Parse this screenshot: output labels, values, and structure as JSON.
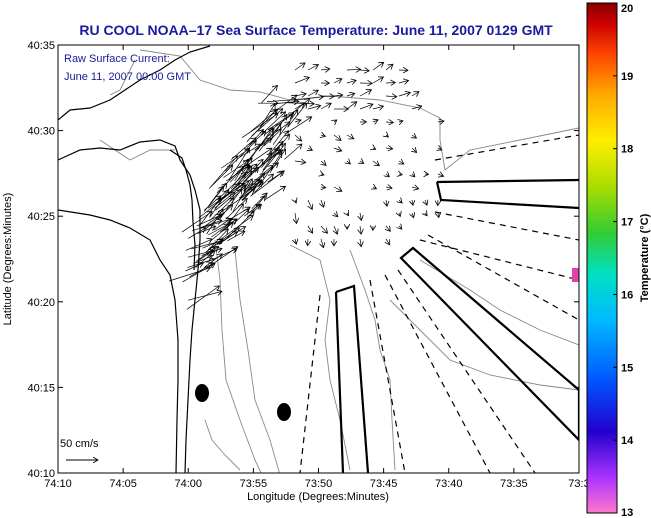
{
  "title": "RU COOL   NOAA–17  Sea Surface Temperature:  June 11, 2007 0129 GMT",
  "annotation": {
    "line1": "Raw Surface Current:",
    "line2": "June 11, 2007 00:00 GMT"
  },
  "scale_label": "50 cm/s",
  "x_axis": {
    "label": "Longitude (Degrees:Minutes)",
    "ticks": [
      "74:10",
      "74:05",
      "74:00",
      "73:55",
      "73:50",
      "73:45",
      "73:40",
      "73:35",
      "73:3"
    ]
  },
  "y_axis": {
    "label": "Latitude (Degrees:Minutes)",
    "ticks": [
      "40:35",
      "40:30",
      "40:25",
      "40:20",
      "40:15",
      "40:10"
    ]
  },
  "colorbar": {
    "label": "Temperature (°C)",
    "ticks": [
      "20",
      "19",
      "18",
      "17",
      "16",
      "15",
      "14",
      "13"
    ],
    "min": 13,
    "max": 20,
    "colors": [
      "#ff66cc",
      "#9933ff",
      "#0000cc",
      "#0066ff",
      "#00ccff",
      "#00e6b0",
      "#33cc33",
      "#99dd00",
      "#ffee00",
      "#ffaa00",
      "#ff5500",
      "#dd0000",
      "#990000"
    ]
  },
  "colors": {
    "title": "#1a1a9c",
    "coastline": "#000000",
    "bathymetry": "#888888",
    "sst_patch": "#dd44aa"
  }
}
